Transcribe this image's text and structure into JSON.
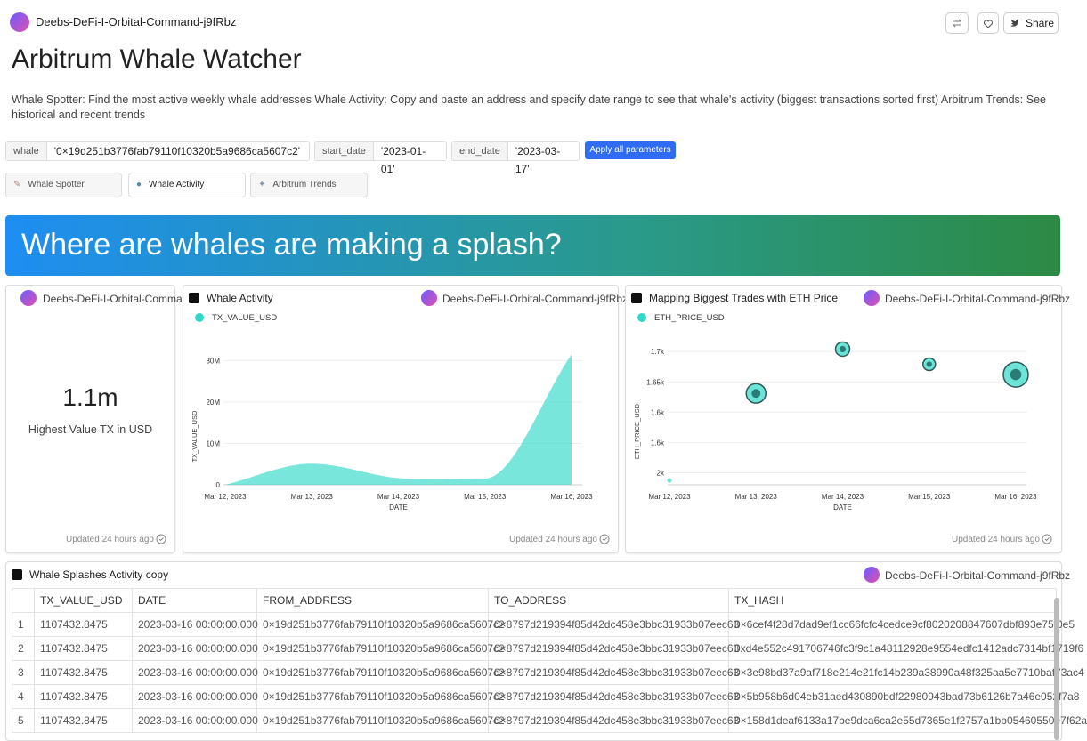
{
  "header": {
    "owner": "Deebs-DeFi-I-Orbital-Command-j9fRbz",
    "share": "Share"
  },
  "title": "Arbitrum Whale Watcher",
  "description": "Whale Spotter: Find the most active weekly whale addresses Whale Activity: Copy and paste an address and specify date range to see that whale's activity (biggest transactions sorted first) Arbitrum Trends: See historical and recent trends",
  "params": [
    {
      "label": "whale",
      "value": "'0×19d251b3776fab79110f10320b5a9686ca5607c2'"
    },
    {
      "label": "start_date",
      "value": "'2023-01-01'"
    },
    {
      "label": "end_date",
      "value": "'2023-03-17'"
    }
  ],
  "apply": "Apply all parameters",
  "tabs": [
    "Whale Spotter",
    "Whale Activity",
    "Arbitrum Trends"
  ],
  "banner": "Where are whales are making a splash?",
  "stat_card": {
    "owner": "Deebs-DeFi-I-Orbital-Command",
    "value": "1.1m",
    "label": "Highest Value TX in USD",
    "updated": "Updated 24 hours ago"
  },
  "chart_data": [
    {
      "type": "area",
      "title": "Whale Activity",
      "owner": "Deebs-DeFi-I-Orbital-Command-j9fRbz",
      "categories": [
        "Mar 12, 2023",
        "Mar 13, 2023",
        "Mar 14, 2023",
        "Mar 15, 2023",
        "Mar 16, 2023"
      ],
      "series": [
        {
          "name": "TX_VALUE_USD",
          "color": "#2fd8c8",
          "values": [
            0,
            5100000,
            1600000,
            1500000,
            31500000
          ]
        }
      ],
      "ylim": [
        0,
        32000000
      ],
      "yticks": [
        0,
        {
          "value": 10000000,
          "label": "10M"
        },
        {
          "value": 20000000,
          "label": "20M"
        },
        {
          "value": 30000000,
          "label": "30M"
        }
      ],
      "x_label": "DATE",
      "y_label": "TX_VALUE_USD",
      "grid": true,
      "updated": "Updated 24 hours ago"
    },
    {
      "type": "scatter",
      "title": "Mapping Biggest Trades with ETH Price",
      "owner": "Deebs-DeFi-I-Orbital-Command-j9fRbz",
      "categories": [
        "Mar 12, 2023",
        "Mar 13, 2023",
        "Mar 14, 2023",
        "Mar 15, 2023",
        "Mar 16, 2023"
      ],
      "series": [
        {
          "name": "ETH_PRICE_USD",
          "color": "#2fd8c8",
          "values": [
            1487,
            1631,
            1704,
            1679,
            1662
          ],
          "sizes": [
            35000,
            683000,
            362000,
            277000,
            1107432
          ]
        }
      ],
      "ylim": [
        1480,
        1715
      ],
      "yticks": [
        {
          "value": 1500,
          "label": "2k"
        },
        {
          "value": 1550,
          "label": "1.6k"
        },
        {
          "value": 1600,
          "label": "1.6k"
        },
        {
          "value": 1650,
          "label": "1.65k"
        },
        {
          "value": 1700,
          "label": "1.7k"
        }
      ],
      "x_label": "DATE",
      "y_label": "ETH_PRICE_USD",
      "grid": true,
      "updated": "Updated 24 hours ago"
    }
  ],
  "table": {
    "title": "Whale Splashes Activity copy",
    "owner": "Deebs-DeFi-I-Orbital-Command-j9fRbz",
    "columns": [
      "TX_VALUE_USD",
      "DATE",
      "FROM_ADDRESS",
      "TO_ADDRESS",
      "TX_HASH"
    ],
    "rows": [
      [
        "1",
        "1107432.8475",
        "2023-03-16 00:00:00.000",
        "0×19d251b3776fab79110f10320b5a9686ca5607c2",
        "0×8797d219394f85d42dc458e3bbc31933b07eec63",
        "0×6cef4f28d7dad9ef1cc66fcfc4cedce9cf8020208847607dbf893e75f0e5"
      ],
      [
        "2",
        "1107432.8475",
        "2023-03-16 00:00:00.000",
        "0×19d251b3776fab79110f10320b5a9686ca5607c2",
        "0×8797d219394f85d42dc458e3bbc31933b07eec63",
        "0xd4e552c491706746fc3f9c1a48112928e9554edfc1412adc7314bf1719f6"
      ],
      [
        "3",
        "1107432.8475",
        "2023-03-16 00:00:00.000",
        "0×19d251b3776fab79110f10320b5a9686ca5607c2",
        "0×8797d219394f85d42dc458e3bbc31933b07eec63",
        "0×3e98bd37a9af718e214e21fc14b239a38990a48f325aa5e7710baf73ac4"
      ],
      [
        "4",
        "1107432.8475",
        "2023-03-16 00:00:00.000",
        "0×19d251b3776fab79110f10320b5a9686ca5607c2",
        "0×8797d219394f85d42dc458e3bbc31933b07eec63",
        "0×5b958b6d04eb31aed430890bdf22980943bad73b6126b7a46e052f7a8"
      ],
      [
        "5",
        "1107432.8475",
        "2023-03-16 00:00:00.000",
        "0×19d251b3776fab79110f10320b5a9686ca5607c2",
        "0×8797d219394f85d42dc458e3bbc31933b07eec63",
        "0×158d1deaf6133a17be9dca6ca2e55d7365e1f2757a1bb05460550e7f62a"
      ]
    ]
  }
}
